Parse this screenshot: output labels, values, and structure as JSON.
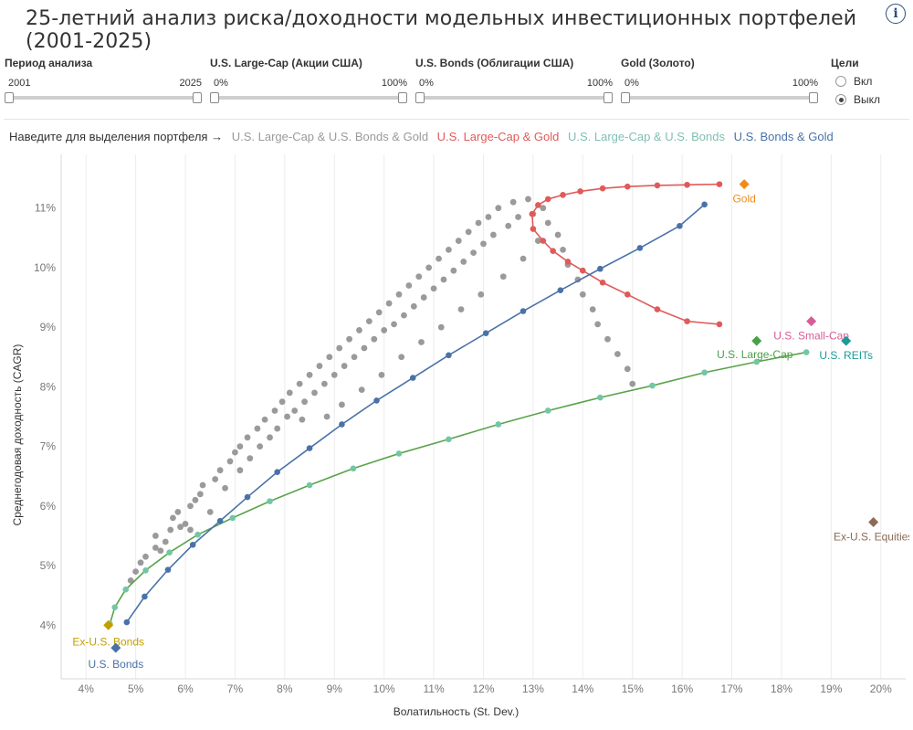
{
  "title": "25-летний анализ риска/доходности модельных инвестиционных портфелей (2001-2025)",
  "filters": [
    {
      "label": "Период анализа",
      "min": "2001",
      "max": "2025",
      "low": 0,
      "high": 1
    },
    {
      "label": "U.S. Large-Cap (Акции США)",
      "min": "0%",
      "max": "100%",
      "low": 0,
      "high": 1
    },
    {
      "label": "U.S. Bonds (Облигации США)",
      "min": "0%",
      "max": "100%",
      "low": 0,
      "high": 1
    },
    {
      "label": "Gold (Золото)",
      "min": "0%",
      "max": "100%",
      "low": 0,
      "high": 1
    }
  ],
  "goals": {
    "label": "Цели",
    "options": [
      {
        "label": "Вкл",
        "checked": false
      },
      {
        "label": "Выкл",
        "checked": true
      }
    ]
  },
  "legend": {
    "hint": "Наведите для выделения портфеля →",
    "items": [
      {
        "label": "U.S. Large-Cap & U.S. Bonds & Gold",
        "color": "#9a9a9a"
      },
      {
        "label": "U.S. Large-Cap & Gold",
        "color": "#e05a5a"
      },
      {
        "label": "U.S. Large-Cap & U.S. Bonds",
        "color": "#7fbfb4"
      },
      {
        "label": "U.S. Bonds & Gold",
        "color": "#4a72a8"
      }
    ]
  },
  "chart_data": {
    "type": "scatter",
    "xlabel": "Волатильность (St. Dev.)",
    "ylabel": "Среднегодовая доходность (CAGR)",
    "xlim": [
      3.5,
      20.5
    ],
    "ylim": [
      3.1,
      11.9
    ],
    "xticks": [
      4,
      5,
      6,
      7,
      8,
      9,
      10,
      11,
      12,
      13,
      14,
      15,
      16,
      17,
      18,
      19,
      20
    ],
    "xtick_labels": [
      "4%",
      "5%",
      "6%",
      "7%",
      "8%",
      "9%",
      "10%",
      "11%",
      "12%",
      "13%",
      "14%",
      "15%",
      "16%",
      "17%",
      "18%",
      "19%",
      "20%"
    ],
    "yticks": [
      4,
      5,
      6,
      7,
      8,
      9,
      10,
      11
    ],
    "ytick_labels": [
      "4%",
      "5%",
      "6%",
      "7%",
      "8%",
      "9%",
      "10%",
      "11%"
    ],
    "grid": "vertical",
    "series": [
      {
        "name": "U.S. Large-Cap & U.S. Bonds & Gold",
        "color": "#9a9a9a",
        "style": "points",
        "points": [
          [
            4.9,
            4.75
          ],
          [
            5.0,
            4.9
          ],
          [
            5.1,
            5.05
          ],
          [
            5.2,
            5.15
          ],
          [
            5.4,
            5.3
          ],
          [
            5.4,
            5.5
          ],
          [
            5.5,
            5.25
          ],
          [
            5.6,
            5.4
          ],
          [
            5.7,
            5.6
          ],
          [
            5.75,
            5.8
          ],
          [
            5.85,
            5.9
          ],
          [
            5.9,
            5.65
          ],
          [
            6.0,
            5.7
          ],
          [
            6.1,
            6.0
          ],
          [
            6.1,
            5.6
          ],
          [
            6.2,
            6.1
          ],
          [
            6.3,
            6.2
          ],
          [
            6.35,
            6.35
          ],
          [
            6.5,
            5.9
          ],
          [
            6.6,
            6.45
          ],
          [
            6.7,
            6.6
          ],
          [
            6.8,
            6.3
          ],
          [
            6.9,
            6.75
          ],
          [
            7.0,
            6.9
          ],
          [
            7.1,
            6.6
          ],
          [
            7.1,
            7.0
          ],
          [
            7.25,
            7.15
          ],
          [
            7.3,
            6.8
          ],
          [
            7.45,
            7.3
          ],
          [
            7.5,
            7.0
          ],
          [
            7.6,
            7.45
          ],
          [
            7.7,
            7.15
          ],
          [
            7.8,
            7.6
          ],
          [
            7.85,
            7.3
          ],
          [
            7.95,
            7.75
          ],
          [
            8.05,
            7.5
          ],
          [
            8.1,
            7.9
          ],
          [
            8.2,
            7.6
          ],
          [
            8.3,
            8.05
          ],
          [
            8.35,
            7.45
          ],
          [
            8.4,
            7.75
          ],
          [
            8.5,
            8.2
          ],
          [
            8.6,
            7.9
          ],
          [
            8.7,
            8.35
          ],
          [
            8.8,
            8.05
          ],
          [
            8.85,
            7.5
          ],
          [
            8.9,
            8.5
          ],
          [
            9.0,
            8.2
          ],
          [
            9.1,
            8.65
          ],
          [
            9.15,
            7.7
          ],
          [
            9.2,
            8.35
          ],
          [
            9.3,
            8.8
          ],
          [
            9.4,
            8.5
          ],
          [
            9.5,
            8.95
          ],
          [
            9.55,
            7.95
          ],
          [
            9.6,
            8.65
          ],
          [
            9.7,
            9.1
          ],
          [
            9.8,
            8.8
          ],
          [
            9.9,
            9.25
          ],
          [
            9.95,
            8.2
          ],
          [
            10.0,
            8.95
          ],
          [
            10.1,
            9.4
          ],
          [
            10.2,
            9.05
          ],
          [
            10.3,
            9.55
          ],
          [
            10.35,
            8.5
          ],
          [
            10.4,
            9.2
          ],
          [
            10.5,
            9.7
          ],
          [
            10.6,
            9.35
          ],
          [
            10.7,
            9.85
          ],
          [
            10.75,
            8.75
          ],
          [
            10.8,
            9.5
          ],
          [
            10.9,
            10.0
          ],
          [
            11.0,
            9.65
          ],
          [
            11.1,
            10.15
          ],
          [
            11.15,
            9.0
          ],
          [
            11.2,
            9.8
          ],
          [
            11.3,
            10.3
          ],
          [
            11.4,
            9.95
          ],
          [
            11.5,
            10.45
          ],
          [
            11.55,
            9.3
          ],
          [
            11.6,
            10.1
          ],
          [
            11.7,
            10.6
          ],
          [
            11.8,
            10.25
          ],
          [
            11.9,
            10.75
          ],
          [
            11.95,
            9.55
          ],
          [
            12.0,
            10.4
          ],
          [
            12.1,
            10.85
          ],
          [
            12.2,
            10.55
          ],
          [
            12.3,
            11.0
          ],
          [
            12.4,
            9.85
          ],
          [
            12.5,
            10.7
          ],
          [
            12.6,
            11.1
          ],
          [
            12.7,
            10.85
          ],
          [
            12.8,
            10.15
          ],
          [
            12.9,
            11.15
          ],
          [
            13.0,
            10.9
          ],
          [
            13.1,
            10.45
          ],
          [
            13.2,
            11.0
          ],
          [
            13.3,
            10.75
          ],
          [
            13.5,
            10.55
          ],
          [
            13.6,
            10.3
          ],
          [
            13.7,
            10.05
          ],
          [
            13.9,
            9.8
          ],
          [
            14.0,
            9.55
          ],
          [
            14.2,
            9.3
          ],
          [
            14.3,
            9.05
          ],
          [
            14.5,
            8.8
          ],
          [
            14.7,
            8.55
          ],
          [
            14.9,
            8.3
          ],
          [
            15.0,
            8.05
          ]
        ]
      },
      {
        "name": "U.S. Large-Cap & Gold",
        "color": "#e05a5a",
        "style": "line",
        "points": [
          [
            12.98,
            10.9
          ],
          [
            13.1,
            11.05
          ],
          [
            13.3,
            11.15
          ],
          [
            13.6,
            11.22
          ],
          [
            13.95,
            11.28
          ],
          [
            14.4,
            11.33
          ],
          [
            14.9,
            11.36
          ],
          [
            15.5,
            11.38
          ],
          [
            16.1,
            11.39
          ],
          [
            16.75,
            11.4
          ],
          [
            13.0,
            10.65
          ],
          [
            13.2,
            10.45
          ],
          [
            13.4,
            10.28
          ],
          [
            13.7,
            10.1
          ],
          [
            14.0,
            9.95
          ],
          [
            14.4,
            9.75
          ],
          [
            14.9,
            9.55
          ],
          [
            15.5,
            9.3
          ],
          [
            16.1,
            9.1
          ],
          [
            16.75,
            9.05
          ]
        ]
      },
      {
        "name": "U.S. Large-Cap & U.S. Bonds",
        "color": "#5aa34a",
        "style": "line",
        "points": [
          [
            4.48,
            4.02
          ],
          [
            4.58,
            4.3
          ],
          [
            4.8,
            4.6
          ],
          [
            5.2,
            4.92
          ],
          [
            5.68,
            5.22
          ],
          [
            6.25,
            5.52
          ],
          [
            6.95,
            5.8
          ],
          [
            7.7,
            6.08
          ],
          [
            8.5,
            6.35
          ],
          [
            9.38,
            6.63
          ],
          [
            10.3,
            6.88
          ],
          [
            11.3,
            7.12
          ],
          [
            12.3,
            7.37
          ],
          [
            13.3,
            7.6
          ],
          [
            14.35,
            7.82
          ],
          [
            15.4,
            8.02
          ],
          [
            16.45,
            8.24
          ],
          [
            17.5,
            8.42
          ],
          [
            18.5,
            8.58
          ]
        ]
      },
      {
        "name": "U.S. Bonds & Gold",
        "color": "#4a72a8",
        "style": "line",
        "points": [
          [
            4.82,
            4.05
          ],
          [
            5.18,
            4.48
          ],
          [
            5.65,
            4.93
          ],
          [
            6.15,
            5.35
          ],
          [
            6.7,
            5.75
          ],
          [
            7.25,
            6.15
          ],
          [
            7.85,
            6.57
          ],
          [
            8.5,
            6.97
          ],
          [
            9.15,
            7.37
          ],
          [
            9.85,
            7.77
          ],
          [
            10.58,
            8.15
          ],
          [
            11.3,
            8.53
          ],
          [
            12.05,
            8.9
          ],
          [
            12.8,
            9.27
          ],
          [
            13.55,
            9.62
          ],
          [
            14.35,
            9.98
          ],
          [
            15.15,
            10.33
          ],
          [
            15.95,
            10.7
          ],
          [
            16.45,
            11.06
          ]
        ]
      }
    ],
    "points_of_interest": [
      {
        "name": "Gold",
        "x": 17.25,
        "y": 11.4,
        "color": "#f08c1c"
      },
      {
        "name": "U.S. Small-Cap",
        "x": 18.6,
        "y": 9.1,
        "color": "#d95b97"
      },
      {
        "name": "U.S. Large-Cap",
        "x": 17.5,
        "y": 8.77,
        "color": "#4aa04a"
      },
      {
        "name": "U.S. REITs",
        "x": 19.3,
        "y": 8.77,
        "color": "#1f9997"
      },
      {
        "name": "Ex-U.S. Equities",
        "x": 19.85,
        "y": 5.73,
        "color": "#8b6b58"
      },
      {
        "name": "Ex-U.S. Bonds",
        "x": 4.45,
        "y": 4.0,
        "color": "#c2a000"
      },
      {
        "name": "U.S. Bonds",
        "x": 4.6,
        "y": 3.62,
        "color": "#4a72a8"
      }
    ]
  }
}
